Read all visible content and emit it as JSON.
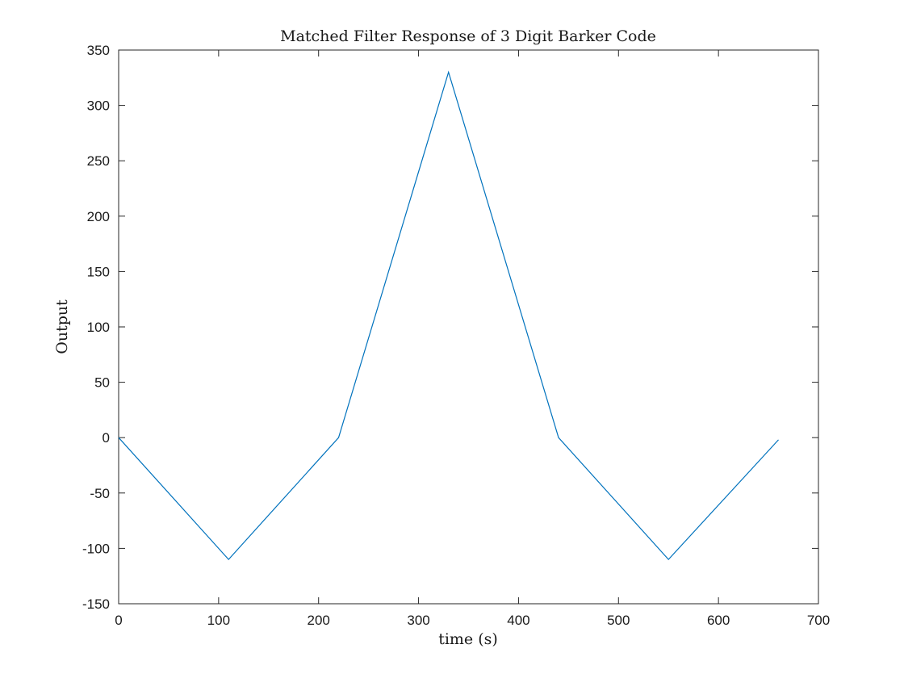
{
  "chart_data": {
    "type": "line",
    "title": "Matched Filter Response of 3 Digit Barker Code",
    "xlabel": "time (s)",
    "ylabel": "Output",
    "xlim": [
      0,
      700
    ],
    "ylim": [
      -150,
      350
    ],
    "xticks": [
      "0",
      "100",
      "200",
      "300",
      "400",
      "500",
      "600",
      "700"
    ],
    "yticks": [
      "350",
      "300",
      "250",
      "200",
      "150",
      "100",
      "50",
      "0",
      "-50",
      "-100",
      "-150"
    ],
    "grid": false,
    "series": [
      {
        "color": "#0072BD",
        "x": [
          0,
          110,
          220,
          330,
          440,
          550,
          660
        ],
        "y": [
          0,
          -110,
          0,
          330,
          0,
          -110,
          -2
        ]
      }
    ]
  }
}
